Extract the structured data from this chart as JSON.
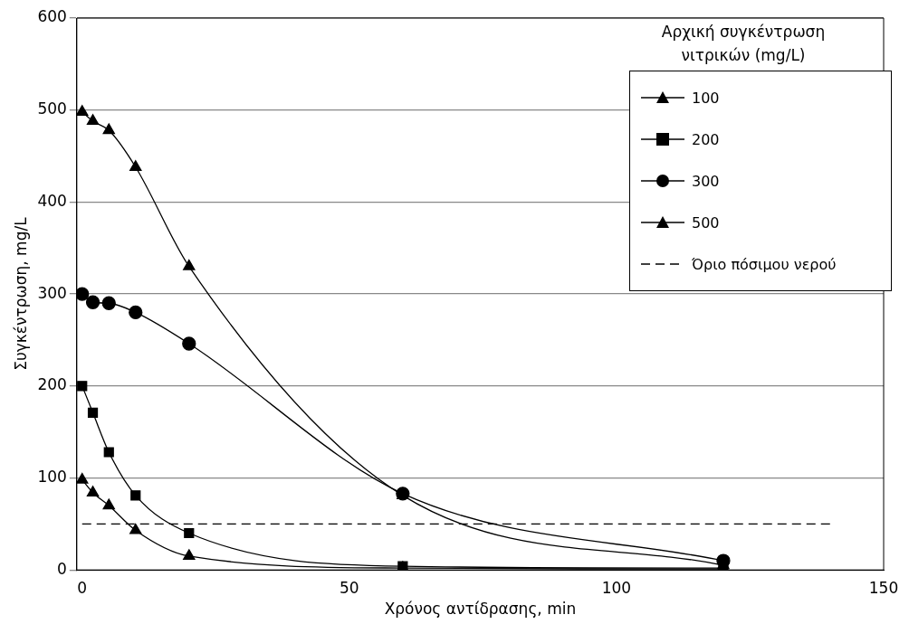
{
  "chart_data": {
    "type": "line",
    "xlabel": "Χρόνος αντίδρασης, min",
    "ylabel": "Συγκέντρωση, mg/L",
    "legend_title": "Αρχική συγκέντρωση νιτρικών (mg/L)",
    "xlim": [
      -1,
      150
    ],
    "xticks": [
      0,
      50,
      100,
      150
    ],
    "ylim": [
      0,
      600
    ],
    "yticks": [
      0,
      100,
      200,
      300,
      400,
      500,
      600
    ],
    "grid": "y",
    "legend": "top right",
    "series": [
      {
        "name": "100",
        "color": "#000000",
        "marker": "triangle",
        "x": [
          0,
          2,
          5,
          10,
          20,
          60,
          120
        ],
        "values": [
          98,
          84,
          70,
          43,
          15,
          2,
          1
        ]
      },
      {
        "name": "200",
        "color": "#000000",
        "marker": "square",
        "x": [
          0,
          2,
          5,
          10,
          20,
          60,
          120
        ],
        "values": [
          200,
          171,
          128,
          81,
          40,
          4,
          2
        ]
      },
      {
        "name": "300",
        "color": "#000000",
        "marker": "circle",
        "x": [
          0,
          2,
          5,
          10,
          20,
          60,
          120
        ],
        "values": [
          300,
          291,
          290,
          280,
          246,
          83,
          10
        ]
      },
      {
        "name": "500",
        "color": "#000000",
        "marker": "triangle",
        "x": [
          0,
          2,
          5,
          10,
          20,
          60,
          120
        ],
        "values": [
          498,
          488,
          478,
          438,
          330,
          81,
          5
        ]
      },
      {
        "name": "Όριο πόσιμου νερού",
        "color": "#000000",
        "marker": "none",
        "line_style": "dashed",
        "x": [
          0,
          140
        ],
        "values": [
          50,
          50
        ]
      }
    ]
  }
}
